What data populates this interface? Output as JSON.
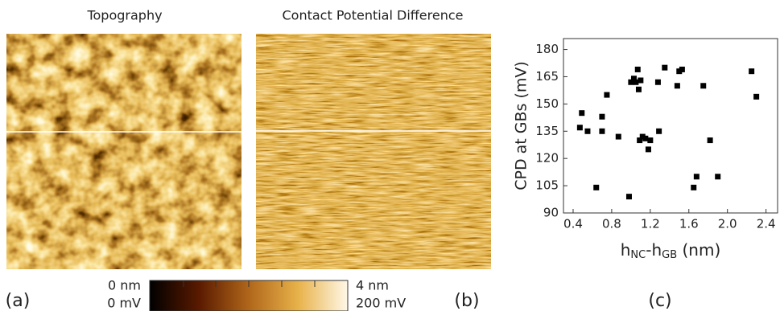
{
  "figure": {
    "panel_a": {
      "title": "Topography",
      "label": "(a)"
    },
    "panel_b": {
      "title": "Contact Potential Difference",
      "label": "(b)"
    },
    "colorbar": {
      "min_top": "0 nm",
      "min_bottom": "0 mV",
      "max_top": "4 nm",
      "max_bottom": "200 mV"
    },
    "panel_c": {
      "label": "(c)"
    }
  },
  "chart_data": {
    "type": "scatter",
    "y_label": "CPD at GBs (mV)",
    "x_label_parts": [
      "h",
      "NC",
      "-h",
      "GB",
      " (nm)"
    ],
    "color": "#000000",
    "x": [
      0.47,
      0.49,
      0.55,
      0.64,
      0.7,
      0.7,
      0.75,
      0.87,
      0.98,
      1.0,
      1.03,
      1.05,
      1.07,
      1.08,
      1.09,
      1.1,
      1.12,
      1.15,
      1.18,
      1.2,
      1.28,
      1.29,
      1.35,
      1.48,
      1.5,
      1.53,
      1.65,
      1.68,
      1.75,
      1.82,
      1.9,
      2.25,
      2.3
    ],
    "values": [
      137,
      145,
      135,
      104,
      143,
      135,
      155,
      132,
      99,
      162,
      164,
      162,
      169,
      158,
      130,
      163,
      132,
      131,
      125,
      130,
      162,
      135,
      170,
      160,
      168,
      169,
      104,
      110,
      160,
      130,
      110,
      168,
      154
    ],
    "xlim": [
      0.3,
      2.52
    ],
    "ylim": [
      90,
      186
    ],
    "xticks": [
      0.4,
      0.8,
      1.2,
      1.6,
      {
        "value": 2,
        "label": "2.0"
      },
      2.4
    ],
    "yticks": [
      90,
      105,
      120,
      135,
      150,
      165,
      180
    ]
  }
}
